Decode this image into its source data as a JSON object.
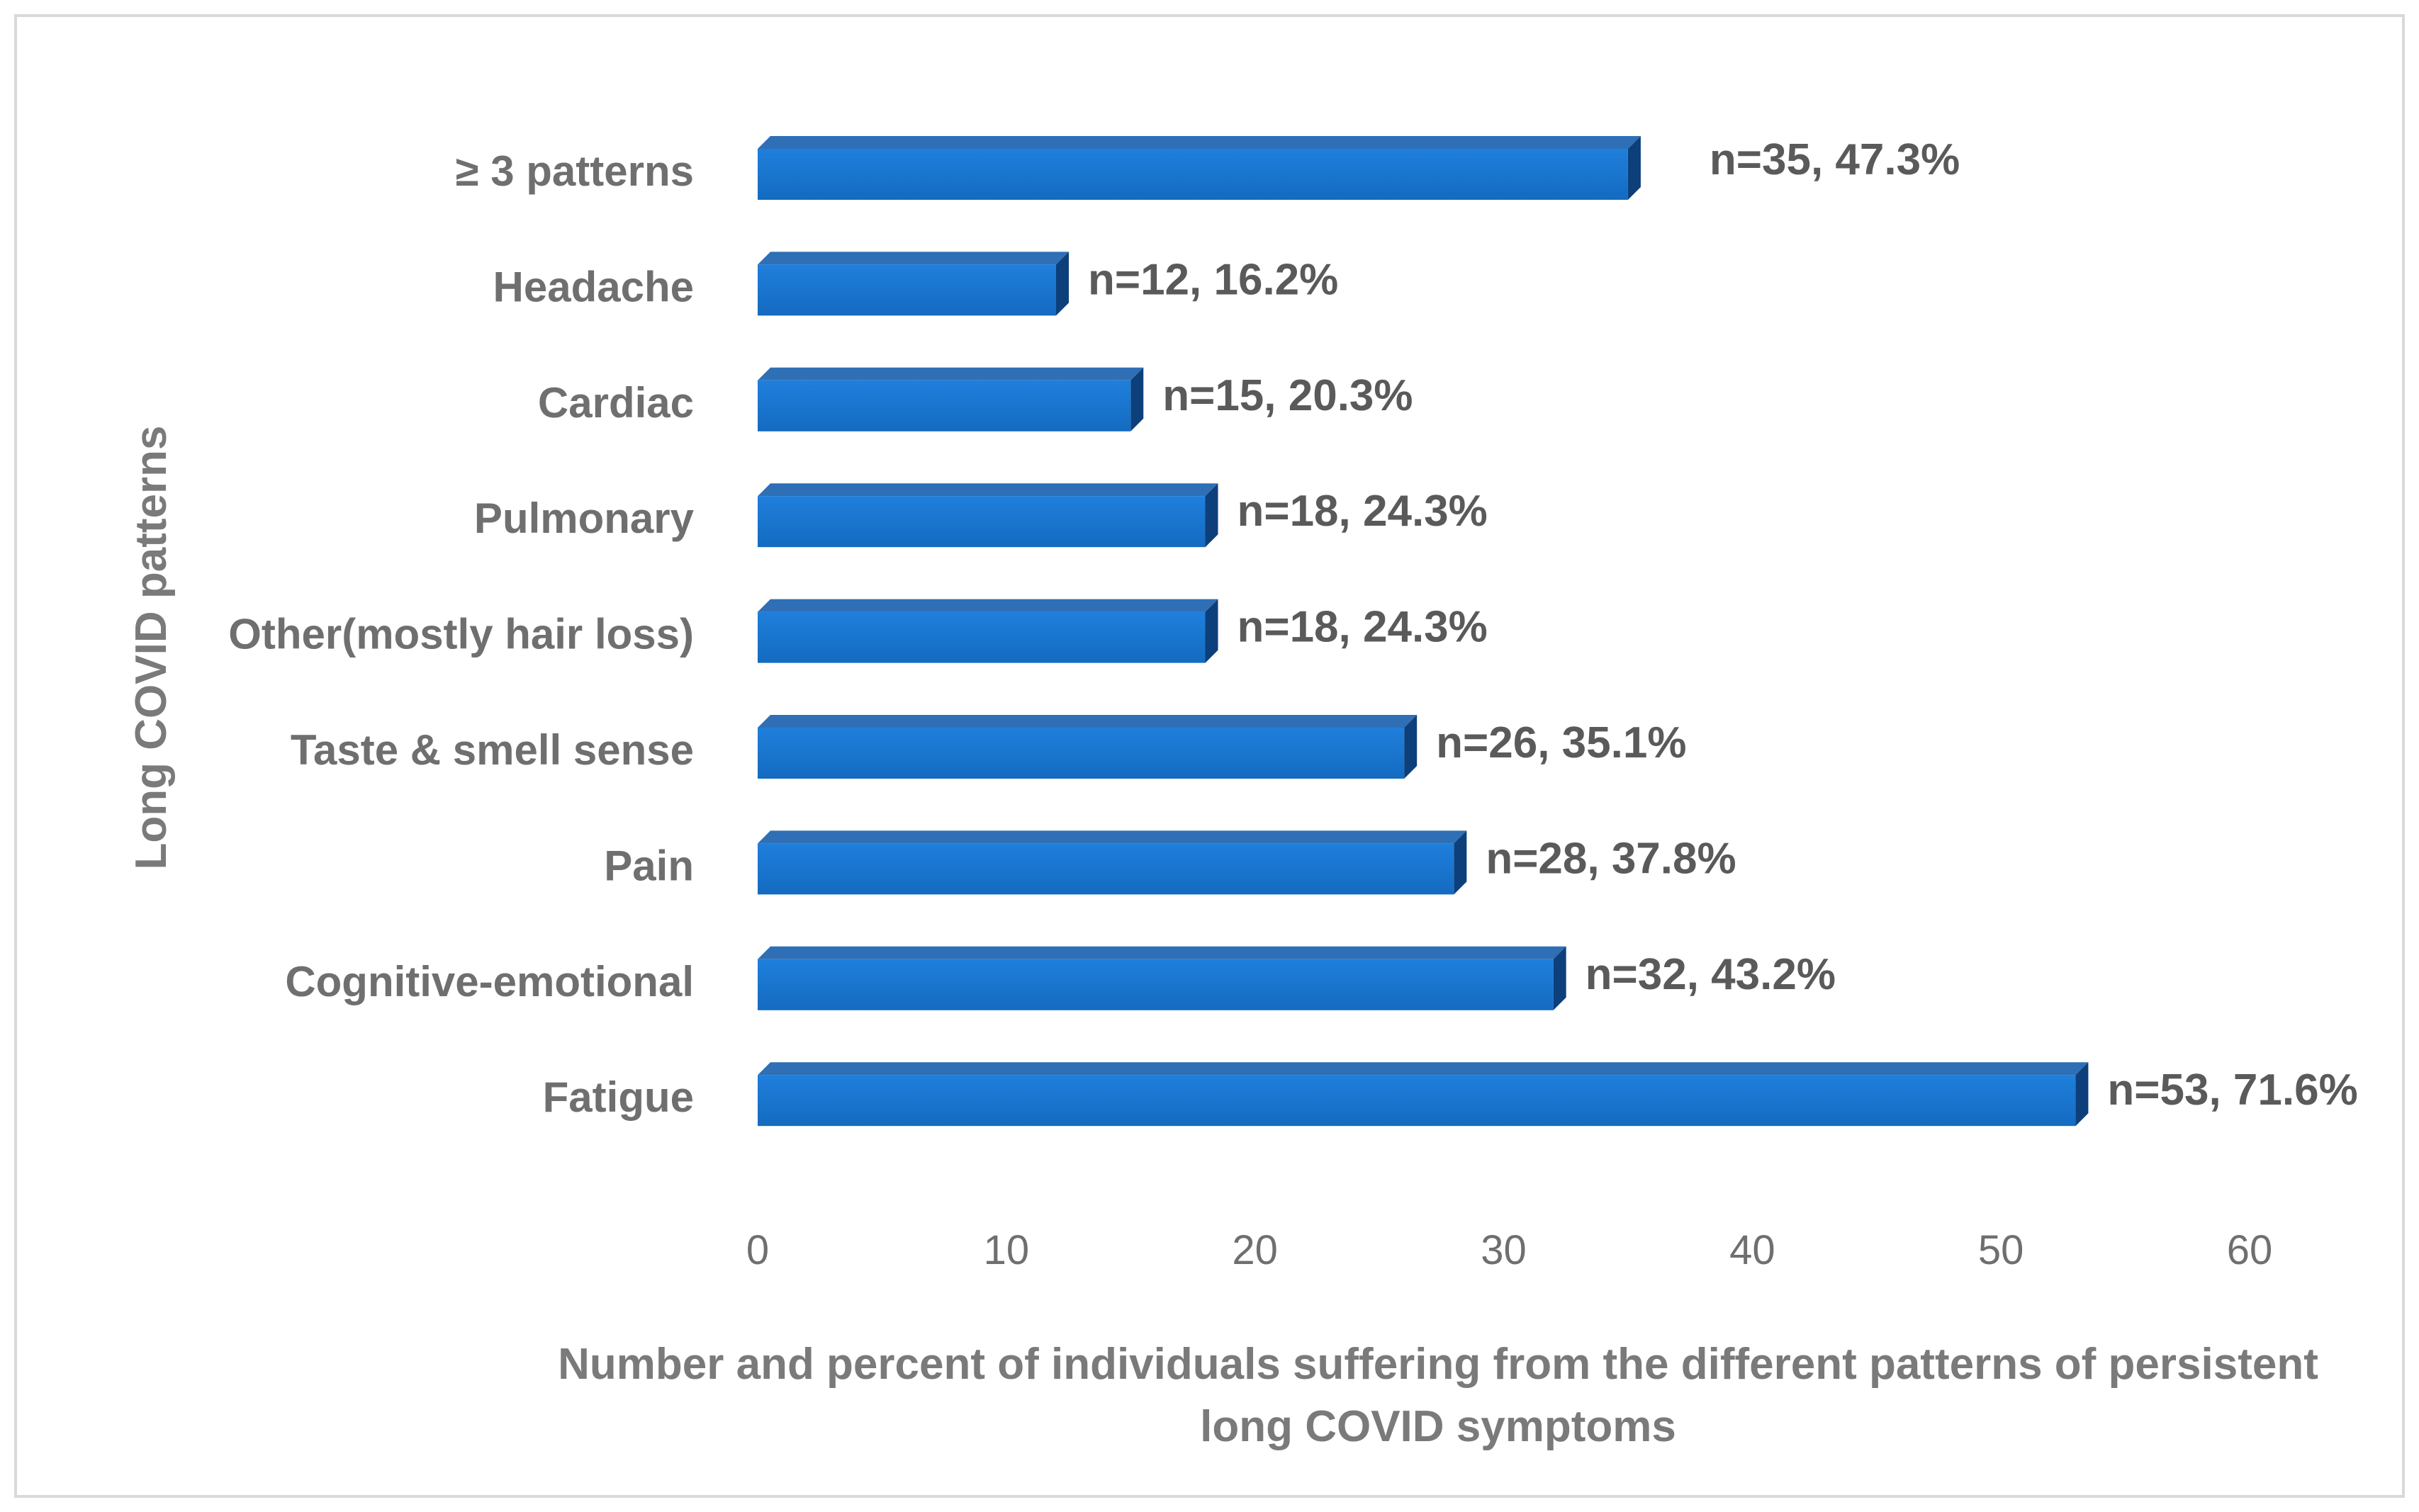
{
  "chart_data": {
    "type": "bar",
    "orientation": "horizontal",
    "style": "3d",
    "categories": [
      "≥ 3 patterns",
      "Headache",
      "Cardiac",
      "Pulmonary",
      "Other(mostly hair loss)",
      "Taste & smell sense",
      "Pain",
      "Cognitive-emotional",
      "Fatigue"
    ],
    "values": [
      35,
      12,
      15,
      18,
      18,
      26,
      28,
      32,
      53
    ],
    "data_labels": [
      "n=35, 47.3%",
      "n=12, 16.2%",
      "n=15, 20.3%",
      "n=18, 24.3%",
      "n=18, 24.3%",
      "n=26, 35.1%",
      "n=28, 37.8%",
      "n=32, 43.2%",
      "n=53, 71.6%"
    ],
    "xlim": [
      0,
      60
    ],
    "xticks": [
      0,
      10,
      20,
      30,
      40,
      50,
      60
    ],
    "xlabel": "Number and percent of individuals suffering from the different patterns of persistent long COVID symptoms",
    "xlabel_lines": [
      "Number and percent of individuals suffering from the different patterns of persistent",
      "long COVID symptoms"
    ],
    "ylabel": "Long COVID patterns",
    "grid": false,
    "legend": "none",
    "colors": {
      "bar_front": "#1874cd",
      "bar_top": "#2f6fb5",
      "bar_side": "#0d3f7a",
      "frame": "#d9d9d9"
    }
  }
}
